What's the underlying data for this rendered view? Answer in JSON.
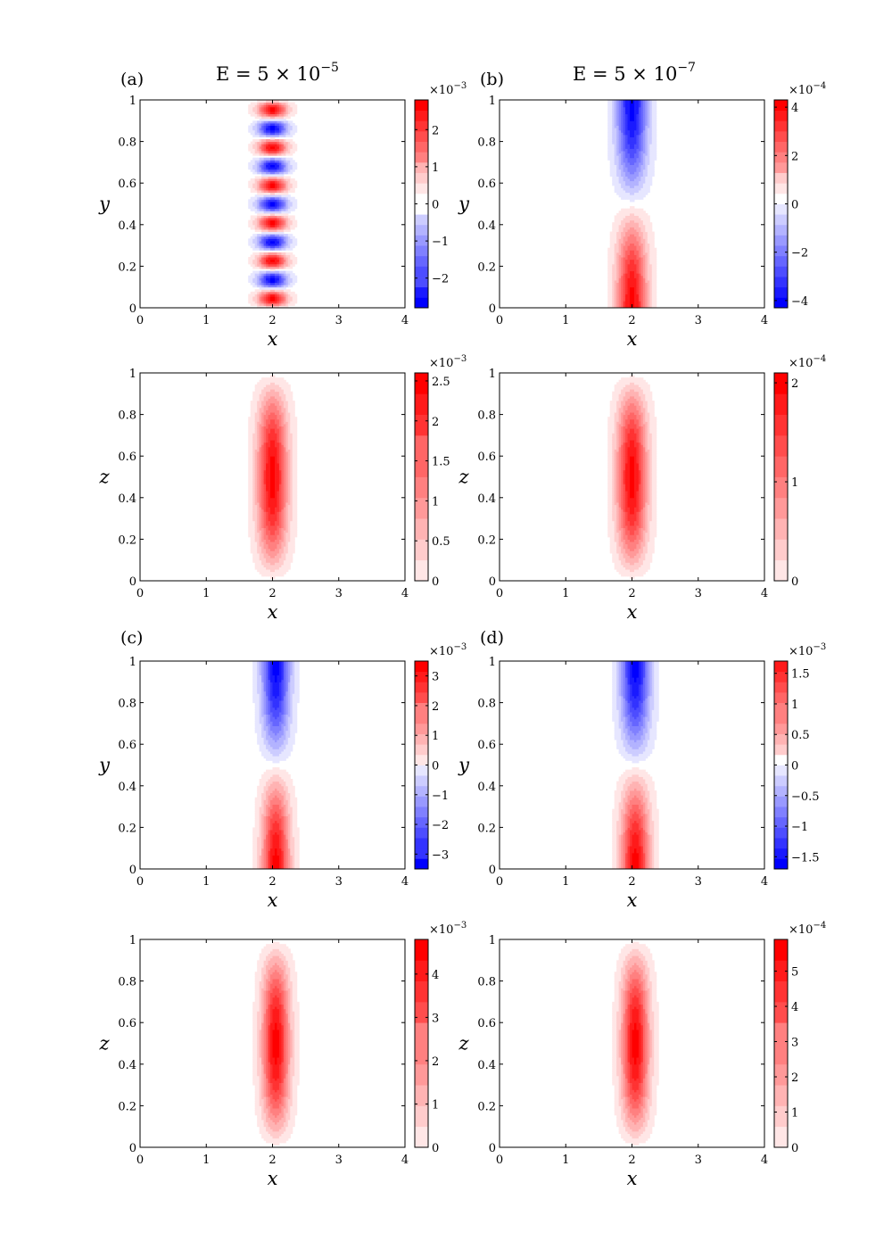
{
  "figure": {
    "titles": [
      {
        "base": "E = 5 × 10",
        "exp": "−5"
      },
      {
        "base": "E = 5 × 10",
        "exp": "−7"
      }
    ],
    "panel_labels": [
      "(a)",
      "(b)",
      "(c)",
      "(d)"
    ]
  },
  "colors": {
    "positive": "#ff0000",
    "negative": "#0000ff",
    "zero": "#ffffff"
  },
  "chart_data": [
    {
      "type": "heatmap",
      "panel": "(a)",
      "title": "E = 5 × 10^−5",
      "xlabel": "x",
      "ylabel": "y",
      "xlim": [
        0,
        4
      ],
      "ylim": [
        0,
        1
      ],
      "xticks": [
        "0",
        "1",
        "2",
        "3",
        "4"
      ],
      "yticks": [
        "0",
        "0.2",
        "0.4",
        "0.6",
        "0.8",
        "1"
      ],
      "colorbar": {
        "multiplier": "×10",
        "multiplier_exp": "−3",
        "range": [
          -2.8,
          2.8
        ],
        "ticks": [
          {
            "v": 2,
            "t": "2"
          },
          {
            "v": 1,
            "t": "1"
          },
          {
            "v": 0,
            "t": "0"
          },
          {
            "v": -1,
            "t": "−1"
          },
          {
            "v": -2,
            "t": "−2"
          }
        ]
      },
      "field": {
        "kind": "striped",
        "cx": 2.0,
        "sx": 0.21,
        "stripes": 11,
        "amplitude": 2.8
      }
    },
    {
      "type": "heatmap",
      "panel": "(b)",
      "title": "E = 5 × 10^−7",
      "xlabel": "x",
      "ylabel": "y",
      "xlim": [
        0,
        4
      ],
      "ylim": [
        0,
        1
      ],
      "xticks": [
        "0",
        "1",
        "2",
        "3",
        "4"
      ],
      "yticks": [
        "0",
        "0.2",
        "0.4",
        "0.6",
        "0.8",
        "1"
      ],
      "colorbar": {
        "multiplier": "×10",
        "multiplier_exp": "−4",
        "range": [
          -4.3,
          4.3
        ],
        "ticks": [
          {
            "v": 4,
            "t": "4"
          },
          {
            "v": 2,
            "t": "2"
          },
          {
            "v": 0,
            "t": "0"
          },
          {
            "v": -2,
            "t": "−2"
          },
          {
            "v": -4,
            "t": "−4"
          }
        ]
      },
      "field": {
        "kind": "antisymmetric",
        "cx": 2.0,
        "sx": 0.22,
        "amplitude": 4.3
      }
    },
    {
      "type": "heatmap",
      "panel": "(a)",
      "xlabel": "x",
      "ylabel": "z",
      "xlim": [
        0,
        4
      ],
      "ylim": [
        0,
        1
      ],
      "xticks": [
        "0",
        "1",
        "2",
        "3",
        "4"
      ],
      "yticks": [
        "0",
        "0.2",
        "0.4",
        "0.6",
        "0.8",
        "1"
      ],
      "colorbar": {
        "multiplier": "×10",
        "multiplier_exp": "−3",
        "range": [
          0,
          2.6
        ],
        "ticks": [
          {
            "v": 2.5,
            "t": "2.5"
          },
          {
            "v": 2,
            "t": "2"
          },
          {
            "v": 1.5,
            "t": "1.5"
          },
          {
            "v": 1,
            "t": "1"
          },
          {
            "v": 0.5,
            "t": "0.5"
          },
          {
            "v": 0,
            "t": "0"
          }
        ]
      },
      "field": {
        "kind": "bump",
        "cx": 2.0,
        "sx": 0.22,
        "amplitude": 2.6
      }
    },
    {
      "type": "heatmap",
      "panel": "(b)",
      "xlabel": "x",
      "ylabel": "z",
      "xlim": [
        0,
        4
      ],
      "ylim": [
        0,
        1
      ],
      "xticks": [
        "0",
        "1",
        "2",
        "3",
        "4"
      ],
      "yticks": [
        "0",
        "0.2",
        "0.4",
        "0.6",
        "0.8",
        "1"
      ],
      "colorbar": {
        "multiplier": "×10",
        "multiplier_exp": "−4",
        "range": [
          0,
          2.1
        ],
        "ticks": [
          {
            "v": 2,
            "t": "2"
          },
          {
            "v": 1,
            "t": "1"
          },
          {
            "v": 0,
            "t": "0"
          }
        ]
      },
      "field": {
        "kind": "bump",
        "cx": 2.0,
        "sx": 0.22,
        "amplitude": 2.1
      }
    },
    {
      "type": "heatmap",
      "panel": "(c)",
      "xlabel": "x",
      "ylabel": "y",
      "xlim": [
        0,
        4
      ],
      "ylim": [
        0,
        1
      ],
      "xticks": [
        "0",
        "1",
        "2",
        "3",
        "4"
      ],
      "yticks": [
        "0",
        "0.2",
        "0.4",
        "0.6",
        "0.8",
        "1"
      ],
      "colorbar": {
        "multiplier": "×10",
        "multiplier_exp": "−3",
        "range": [
          -3.5,
          3.5
        ],
        "ticks": [
          {
            "v": 3,
            "t": "3"
          },
          {
            "v": 2,
            "t": "2"
          },
          {
            "v": 1,
            "t": "1"
          },
          {
            "v": 0,
            "t": "0"
          },
          {
            "v": -1,
            "t": "−1"
          },
          {
            "v": -2,
            "t": "−2"
          },
          {
            "v": -3,
            "t": "−3"
          }
        ]
      },
      "field": {
        "kind": "antisymmetric",
        "cx": 2.05,
        "sx": 0.2,
        "amplitude": 3.5
      }
    },
    {
      "type": "heatmap",
      "panel": "(d)",
      "xlabel": "x",
      "ylabel": "y",
      "xlim": [
        0,
        4
      ],
      "ylim": [
        0,
        1
      ],
      "xticks": [
        "0",
        "1",
        "2",
        "3",
        "4"
      ],
      "yticks": [
        "0",
        "0.2",
        "0.4",
        "0.6",
        "0.8",
        "1"
      ],
      "colorbar": {
        "multiplier": "×10",
        "multiplier_exp": "−3",
        "range": [
          -1.7,
          1.7
        ],
        "ticks": [
          {
            "v": 1.5,
            "t": "1.5"
          },
          {
            "v": 1,
            "t": "1"
          },
          {
            "v": 0.5,
            "t": "0.5"
          },
          {
            "v": 0,
            "t": "0"
          },
          {
            "v": -0.5,
            "t": "−0.5"
          },
          {
            "v": -1,
            "t": "−1"
          },
          {
            "v": -1.5,
            "t": "−1.5"
          }
        ]
      },
      "field": {
        "kind": "antisymmetric",
        "cx": 2.05,
        "sx": 0.21,
        "amplitude": 1.7
      }
    },
    {
      "type": "heatmap",
      "panel": "(c)",
      "xlabel": "x",
      "ylabel": "z",
      "xlim": [
        0,
        4
      ],
      "ylim": [
        0,
        1
      ],
      "xticks": [
        "0",
        "1",
        "2",
        "3",
        "4"
      ],
      "yticks": [
        "0",
        "0.2",
        "0.4",
        "0.6",
        "0.8",
        "1"
      ],
      "colorbar": {
        "multiplier": "×10",
        "multiplier_exp": "−3",
        "range": [
          0,
          4.8
        ],
        "ticks": [
          {
            "v": 4,
            "t": "4"
          },
          {
            "v": 3,
            "t": "3"
          },
          {
            "v": 2,
            "t": "2"
          },
          {
            "v": 1,
            "t": "1"
          },
          {
            "v": 0,
            "t": "0"
          }
        ]
      },
      "field": {
        "kind": "bump",
        "cx": 2.05,
        "sx": 0.2,
        "amplitude": 4.8
      }
    },
    {
      "type": "heatmap",
      "panel": "(d)",
      "xlabel": "x",
      "ylabel": "z",
      "xlim": [
        0,
        4
      ],
      "ylim": [
        0,
        1
      ],
      "xticks": [
        "0",
        "1",
        "2",
        "3",
        "4"
      ],
      "yticks": [
        "0",
        "0.2",
        "0.4",
        "0.6",
        "0.8",
        "1"
      ],
      "colorbar": {
        "multiplier": "×10",
        "multiplier_exp": "−4",
        "range": [
          0,
          5.9
        ],
        "ticks": [
          {
            "v": 5,
            "t": "5"
          },
          {
            "v": 4,
            "t": "4"
          },
          {
            "v": 3,
            "t": "3"
          },
          {
            "v": 2,
            "t": "2"
          },
          {
            "v": 1,
            "t": "1"
          },
          {
            "v": 0,
            "t": "0"
          }
        ]
      },
      "field": {
        "kind": "bump",
        "cx": 2.05,
        "sx": 0.2,
        "amplitude": 5.9
      }
    }
  ]
}
